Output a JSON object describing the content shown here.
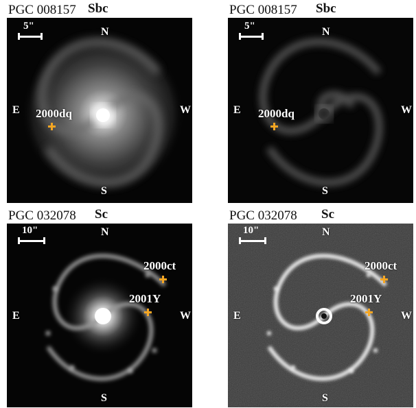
{
  "panels": [
    {
      "pgc": "PGC 008157",
      "type": "Sbc",
      "scale": "5\"",
      "dirs": {
        "n": "N",
        "s": "S",
        "e": "E",
        "w": "W"
      },
      "supernovae": [
        {
          "label": "2000dq"
        }
      ]
    },
    {
      "pgc": "PGC 008157",
      "type": "Sbc",
      "scale": "5\"",
      "dirs": {
        "n": "N",
        "s": "S",
        "e": "E",
        "w": "W"
      },
      "supernovae": [
        {
          "label": "2000dq"
        }
      ]
    },
    {
      "pgc": "PGC 032078",
      "type": "Sc",
      "scale": "10\"",
      "dirs": {
        "n": "N",
        "s": "S",
        "e": "E",
        "w": "W"
      },
      "supernovae": [
        {
          "label": "2000ct"
        },
        {
          "label": "2001Y"
        }
      ]
    },
    {
      "pgc": "PGC 032078",
      "type": "Sc",
      "scale": "10\"",
      "dirs": {
        "n": "N",
        "s": "S",
        "e": "E",
        "w": "W"
      },
      "supernovae": [
        {
          "label": "2000ct"
        },
        {
          "label": "2001Y"
        }
      ]
    }
  ],
  "colors": {
    "marker": "#f5a623",
    "label": "#ffffff",
    "background": "#000000"
  }
}
